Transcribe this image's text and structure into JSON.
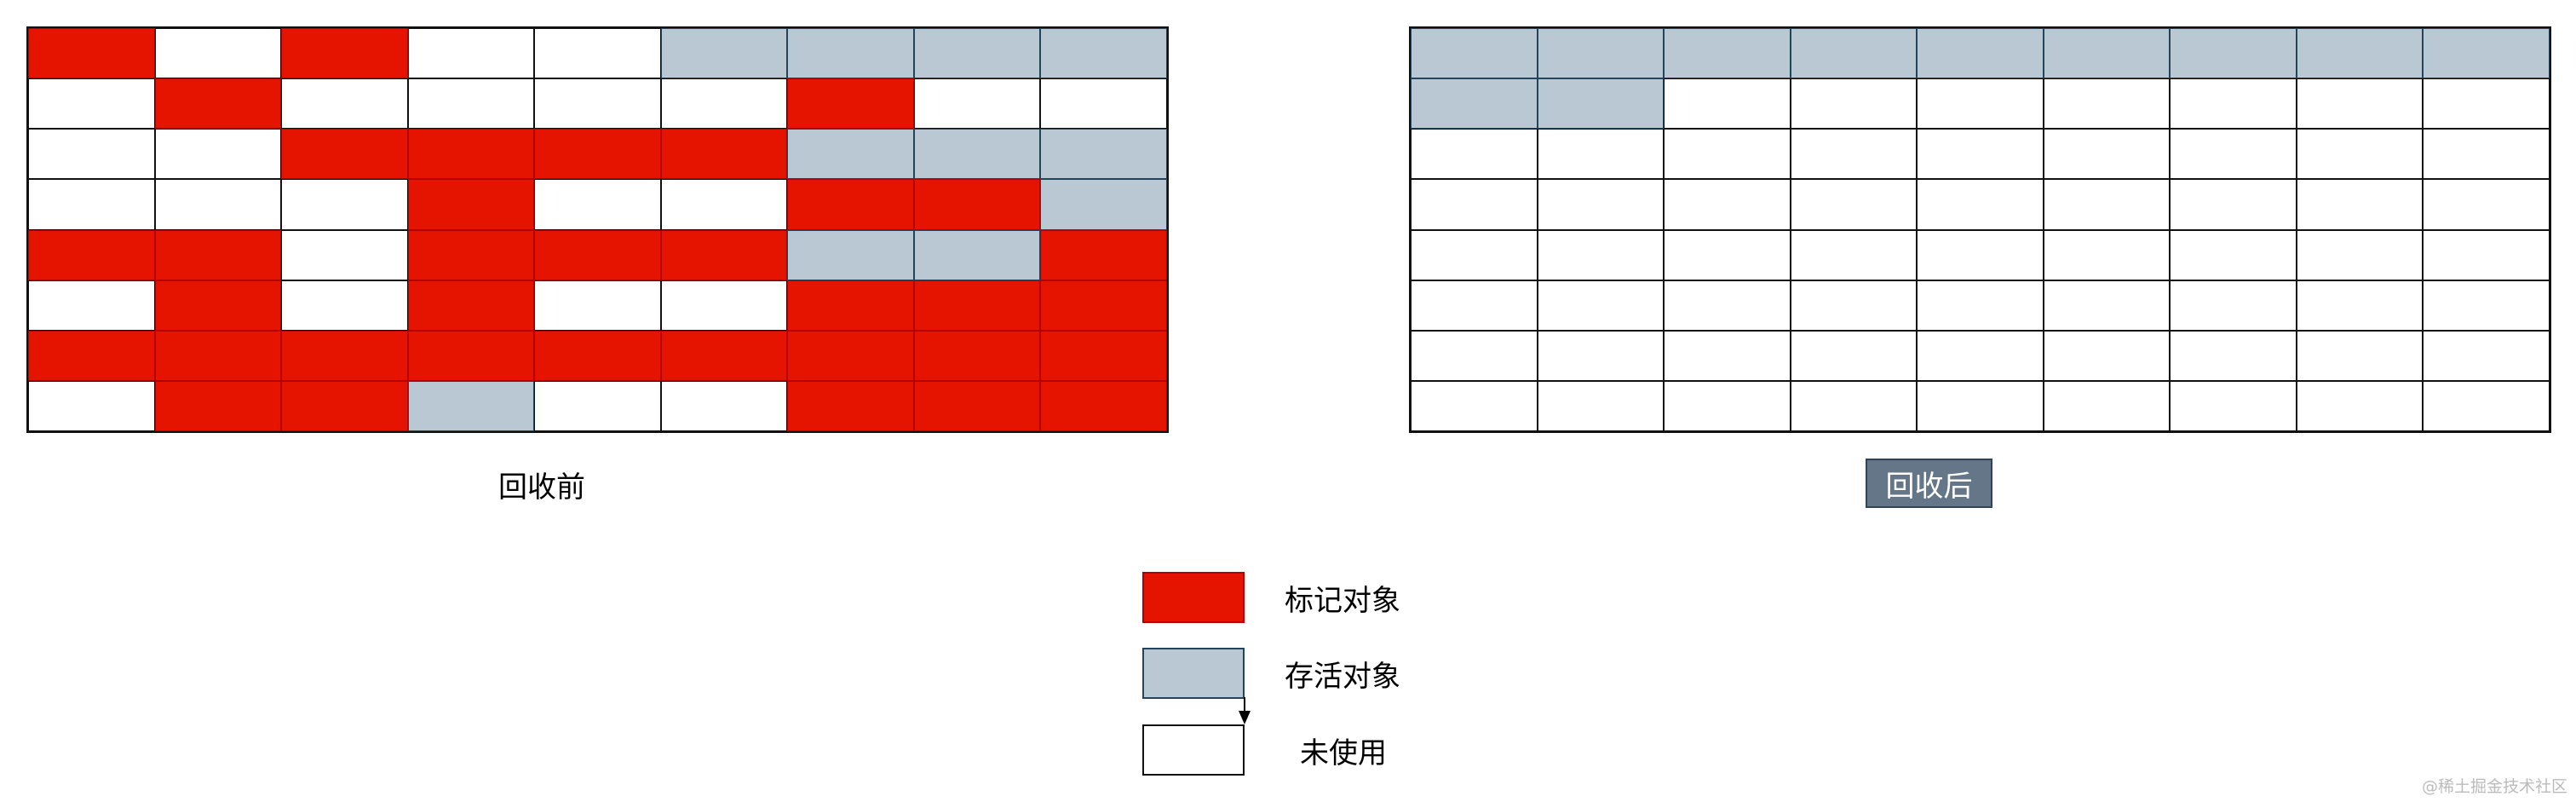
{
  "colors": {
    "marked": "#e51400",
    "alive": "#bac8d3",
    "unused": "#ffffff",
    "after_label_bg": "#647687"
  },
  "before": {
    "label": "回收前",
    "cells": [
      [
        "marked",
        "unused",
        "marked",
        "unused",
        "unused",
        "alive",
        "alive",
        "alive",
        "alive"
      ],
      [
        "unused",
        "marked",
        "unused",
        "unused",
        "unused",
        "unused",
        "marked",
        "unused",
        "unused"
      ],
      [
        "unused",
        "unused",
        "marked",
        "marked",
        "marked",
        "marked",
        "alive",
        "alive",
        "alive"
      ],
      [
        "unused",
        "unused",
        "unused",
        "marked",
        "unused",
        "unused",
        "marked",
        "marked",
        "alive"
      ],
      [
        "marked",
        "marked",
        "unused",
        "marked",
        "marked",
        "marked",
        "alive",
        "alive",
        "marked"
      ],
      [
        "unused",
        "marked",
        "unused",
        "marked",
        "unused",
        "unused",
        "marked",
        "marked",
        "marked"
      ],
      [
        "marked",
        "marked",
        "marked",
        "marked",
        "marked",
        "marked",
        "marked",
        "marked",
        "marked"
      ],
      [
        "unused",
        "marked",
        "marked",
        "alive",
        "unused",
        "unused",
        "marked",
        "marked",
        "marked"
      ]
    ]
  },
  "after": {
    "label": "回收后",
    "cells": [
      [
        "alive",
        "alive",
        "alive",
        "alive",
        "alive",
        "alive",
        "alive",
        "alive",
        "alive"
      ],
      [
        "alive",
        "alive",
        "unused",
        "unused",
        "unused",
        "unused",
        "unused",
        "unused",
        "unused"
      ],
      [
        "unused",
        "unused",
        "unused",
        "unused",
        "unused",
        "unused",
        "unused",
        "unused",
        "unused"
      ],
      [
        "unused",
        "unused",
        "unused",
        "unused",
        "unused",
        "unused",
        "unused",
        "unused",
        "unused"
      ],
      [
        "unused",
        "unused",
        "unused",
        "unused",
        "unused",
        "unused",
        "unused",
        "unused",
        "unused"
      ],
      [
        "unused",
        "unused",
        "unused",
        "unused",
        "unused",
        "unused",
        "unused",
        "unused",
        "unused"
      ],
      [
        "unused",
        "unused",
        "unused",
        "unused",
        "unused",
        "unused",
        "unused",
        "unused",
        "unused"
      ],
      [
        "unused",
        "unused",
        "unused",
        "unused",
        "unused",
        "unused",
        "unused",
        "unused",
        "unused"
      ]
    ]
  },
  "legend": [
    {
      "type": "marked",
      "label": "标记对象"
    },
    {
      "type": "alive",
      "label": "存活对象"
    },
    {
      "type": "unused",
      "label": "未使用"
    }
  ],
  "watermark": "@稀土掘金技术社区"
}
